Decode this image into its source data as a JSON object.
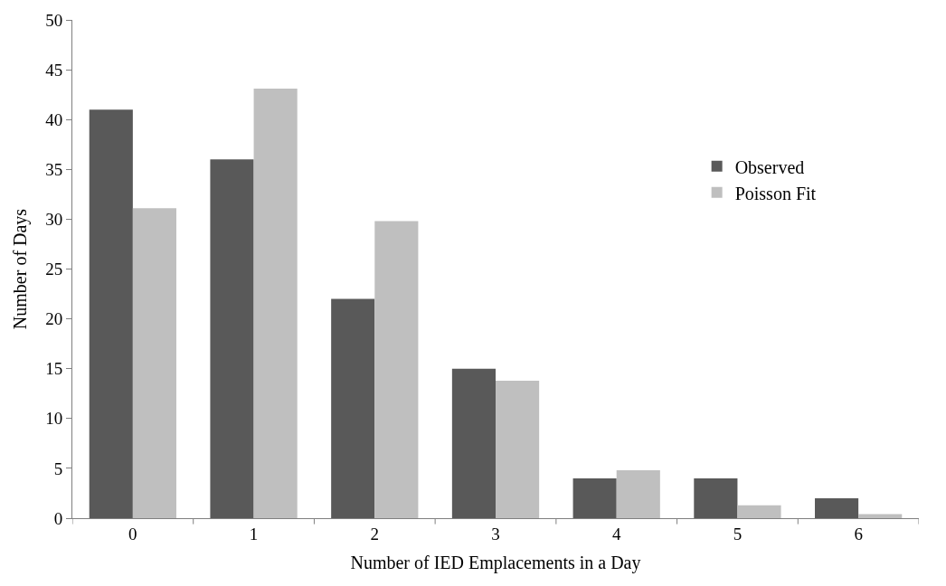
{
  "chart_data": {
    "type": "bar",
    "xlabel": "Number of IED Emplacements in a Day",
    "ylabel": "Number of Days",
    "categories": [
      "0",
      "1",
      "2",
      "3",
      "4",
      "5",
      "6"
    ],
    "series": [
      {
        "name": "Observed",
        "color": "#595959",
        "values": [
          41,
          36,
          22,
          15,
          4,
          4,
          2
        ]
      },
      {
        "name": "Poisson Fit",
        "color": "#bfbfbf",
        "values": [
          31.1,
          43.1,
          29.8,
          13.8,
          4.8,
          1.3,
          0.4
        ]
      }
    ],
    "ylim": [
      0,
      50
    ],
    "yticks": [
      0,
      5,
      10,
      15,
      20,
      25,
      30,
      35,
      40,
      45,
      50
    ],
    "legend": "right"
  }
}
